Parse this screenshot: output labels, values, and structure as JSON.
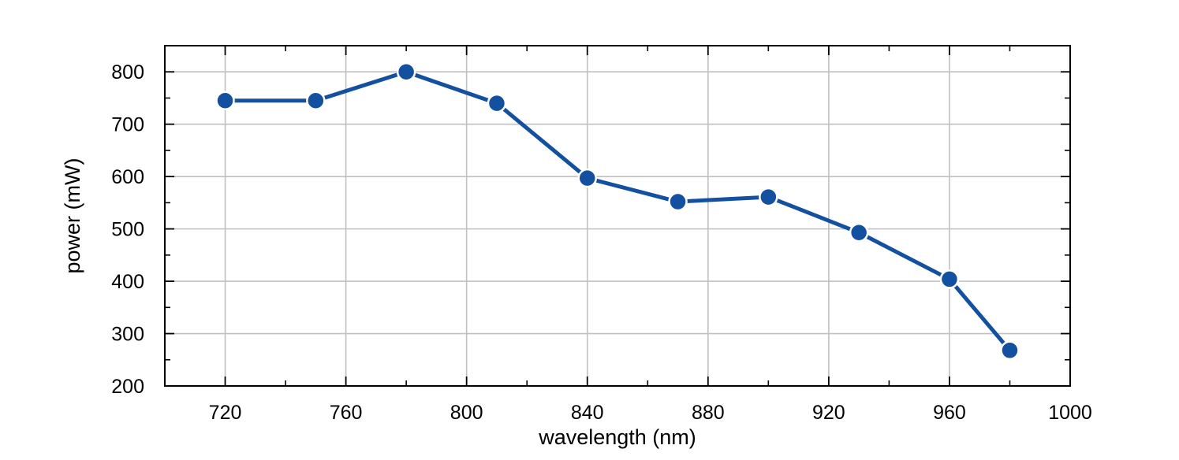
{
  "chart_data": {
    "type": "line",
    "xlabel": "wavelength (nm)",
    "ylabel": "power (mW)",
    "xlim": [
      700,
      1000
    ],
    "ylim": [
      200,
      850
    ],
    "x_ticks": [
      720,
      760,
      800,
      840,
      880,
      920,
      960,
      1000
    ],
    "y_ticks": [
      200,
      300,
      400,
      500,
      600,
      700,
      800
    ],
    "x_minor_step": 20,
    "y_minor_step": 50,
    "grid": true,
    "legend": "none",
    "series": [
      {
        "color": "#1450a0",
        "x": [
          720,
          750,
          780,
          810,
          840,
          870,
          900,
          930,
          960,
          980
        ],
        "y": [
          745,
          745,
          800,
          740,
          597,
          552,
          561,
          493,
          404,
          268
        ]
      }
    ]
  }
}
